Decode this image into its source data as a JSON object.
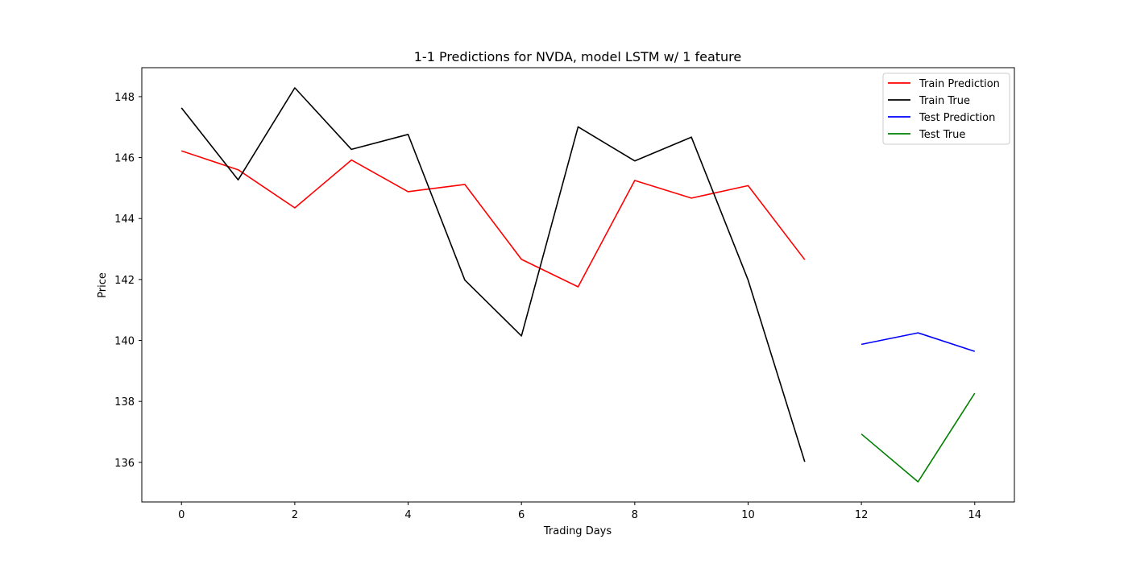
{
  "chart_data": {
    "type": "line",
    "title": "1-1 Predictions for NVDA, model LSTM w/ 1 feature",
    "xlabel": "Trading Days",
    "ylabel": "Price",
    "xlim": [
      -0.7,
      14.7
    ],
    "ylim": [
      134.7,
      148.95
    ],
    "xticks": [
      0,
      2,
      4,
      6,
      8,
      10,
      12,
      14
    ],
    "yticks": [
      136,
      138,
      140,
      142,
      144,
      146,
      148
    ],
    "grid": false,
    "legend_position": "top-right",
    "series": [
      {
        "name": "Train Prediction",
        "color": "#ff0000",
        "x": [
          0,
          1,
          2,
          3,
          4,
          5,
          6,
          7,
          8,
          9,
          10,
          11
        ],
        "y": [
          146.22,
          145.6,
          144.35,
          145.92,
          144.88,
          145.12,
          142.66,
          141.76,
          145.25,
          144.67,
          145.08,
          142.65
        ]
      },
      {
        "name": "Train True",
        "color": "#000000",
        "x": [
          0,
          1,
          2,
          3,
          4,
          5,
          6,
          7,
          8,
          9,
          10,
          11
        ],
        "y": [
          147.63,
          145.27,
          148.29,
          146.27,
          146.76,
          141.98,
          140.15,
          147.01,
          145.89,
          146.67,
          141.98,
          136.02
        ]
      },
      {
        "name": "Test Prediction",
        "color": "#0000ff",
        "x": [
          12,
          13,
          14
        ],
        "y": [
          139.87,
          140.25,
          139.64
        ]
      },
      {
        "name": "Test True",
        "color": "#008000",
        "x": [
          12,
          13,
          14
        ],
        "y": [
          136.93,
          135.36,
          138.27
        ]
      }
    ]
  }
}
